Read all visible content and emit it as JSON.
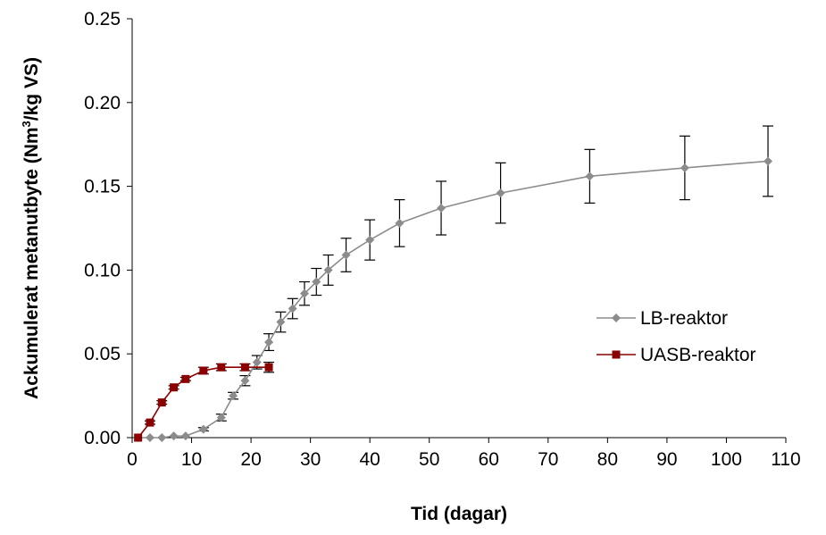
{
  "chart_data": {
    "type": "line",
    "title": "",
    "xlabel": "Tid (dagar)",
    "ylabel_pre": "Ackumulerat metanutbyte (Nm",
    "ylabel_sup": "3",
    "ylabel_post": "/kg VS)",
    "xlim": [
      0,
      110
    ],
    "ylim": [
      0,
      0.25
    ],
    "xticks": [
      0,
      10,
      20,
      30,
      40,
      50,
      60,
      70,
      80,
      90,
      100,
      110
    ],
    "yticks": [
      0,
      0.05,
      0.1,
      0.15,
      0.2,
      0.25
    ],
    "yticklabels": [
      "0.00",
      "0.05",
      "0.10",
      "0.15",
      "0.20",
      "0.25"
    ],
    "grid": false,
    "legend_position": "right",
    "series": [
      {
        "name": "LB-reaktor",
        "color": "#8c8c8c",
        "marker": "diamond",
        "x": [
          1,
          3,
          5,
          7,
          9,
          12,
          15,
          17,
          19,
          21,
          23,
          25,
          27,
          29,
          31,
          33,
          36,
          40,
          45,
          52,
          62,
          77,
          93,
          107
        ],
        "y": [
          0.0,
          0.0,
          0.0,
          0.001,
          0.001,
          0.005,
          0.012,
          0.025,
          0.034,
          0.045,
          0.057,
          0.069,
          0.077,
          0.086,
          0.093,
          0.1,
          0.109,
          0.118,
          0.128,
          0.137,
          0.146,
          0.156,
          0.161,
          0.165
        ],
        "err": [
          0,
          0,
          0,
          0,
          0,
          0.001,
          0.002,
          0.002,
          0.003,
          0.004,
          0.005,
          0.006,
          0.006,
          0.007,
          0.008,
          0.009,
          0.01,
          0.012,
          0.014,
          0.016,
          0.018,
          0.016,
          0.019,
          0.021
        ]
      },
      {
        "name": "UASB-reaktor",
        "color": "#8b0000",
        "marker": "square",
        "x": [
          1,
          3,
          5,
          7,
          9,
          12,
          15,
          19,
          23
        ],
        "y": [
          0.0,
          0.009,
          0.021,
          0.03,
          0.035,
          0.04,
          0.042,
          0.042,
          0.042
        ],
        "err": [
          0,
          0.001,
          0.001,
          0.001,
          0.001,
          0.002,
          0.002,
          0.002,
          0.003
        ]
      }
    ]
  }
}
